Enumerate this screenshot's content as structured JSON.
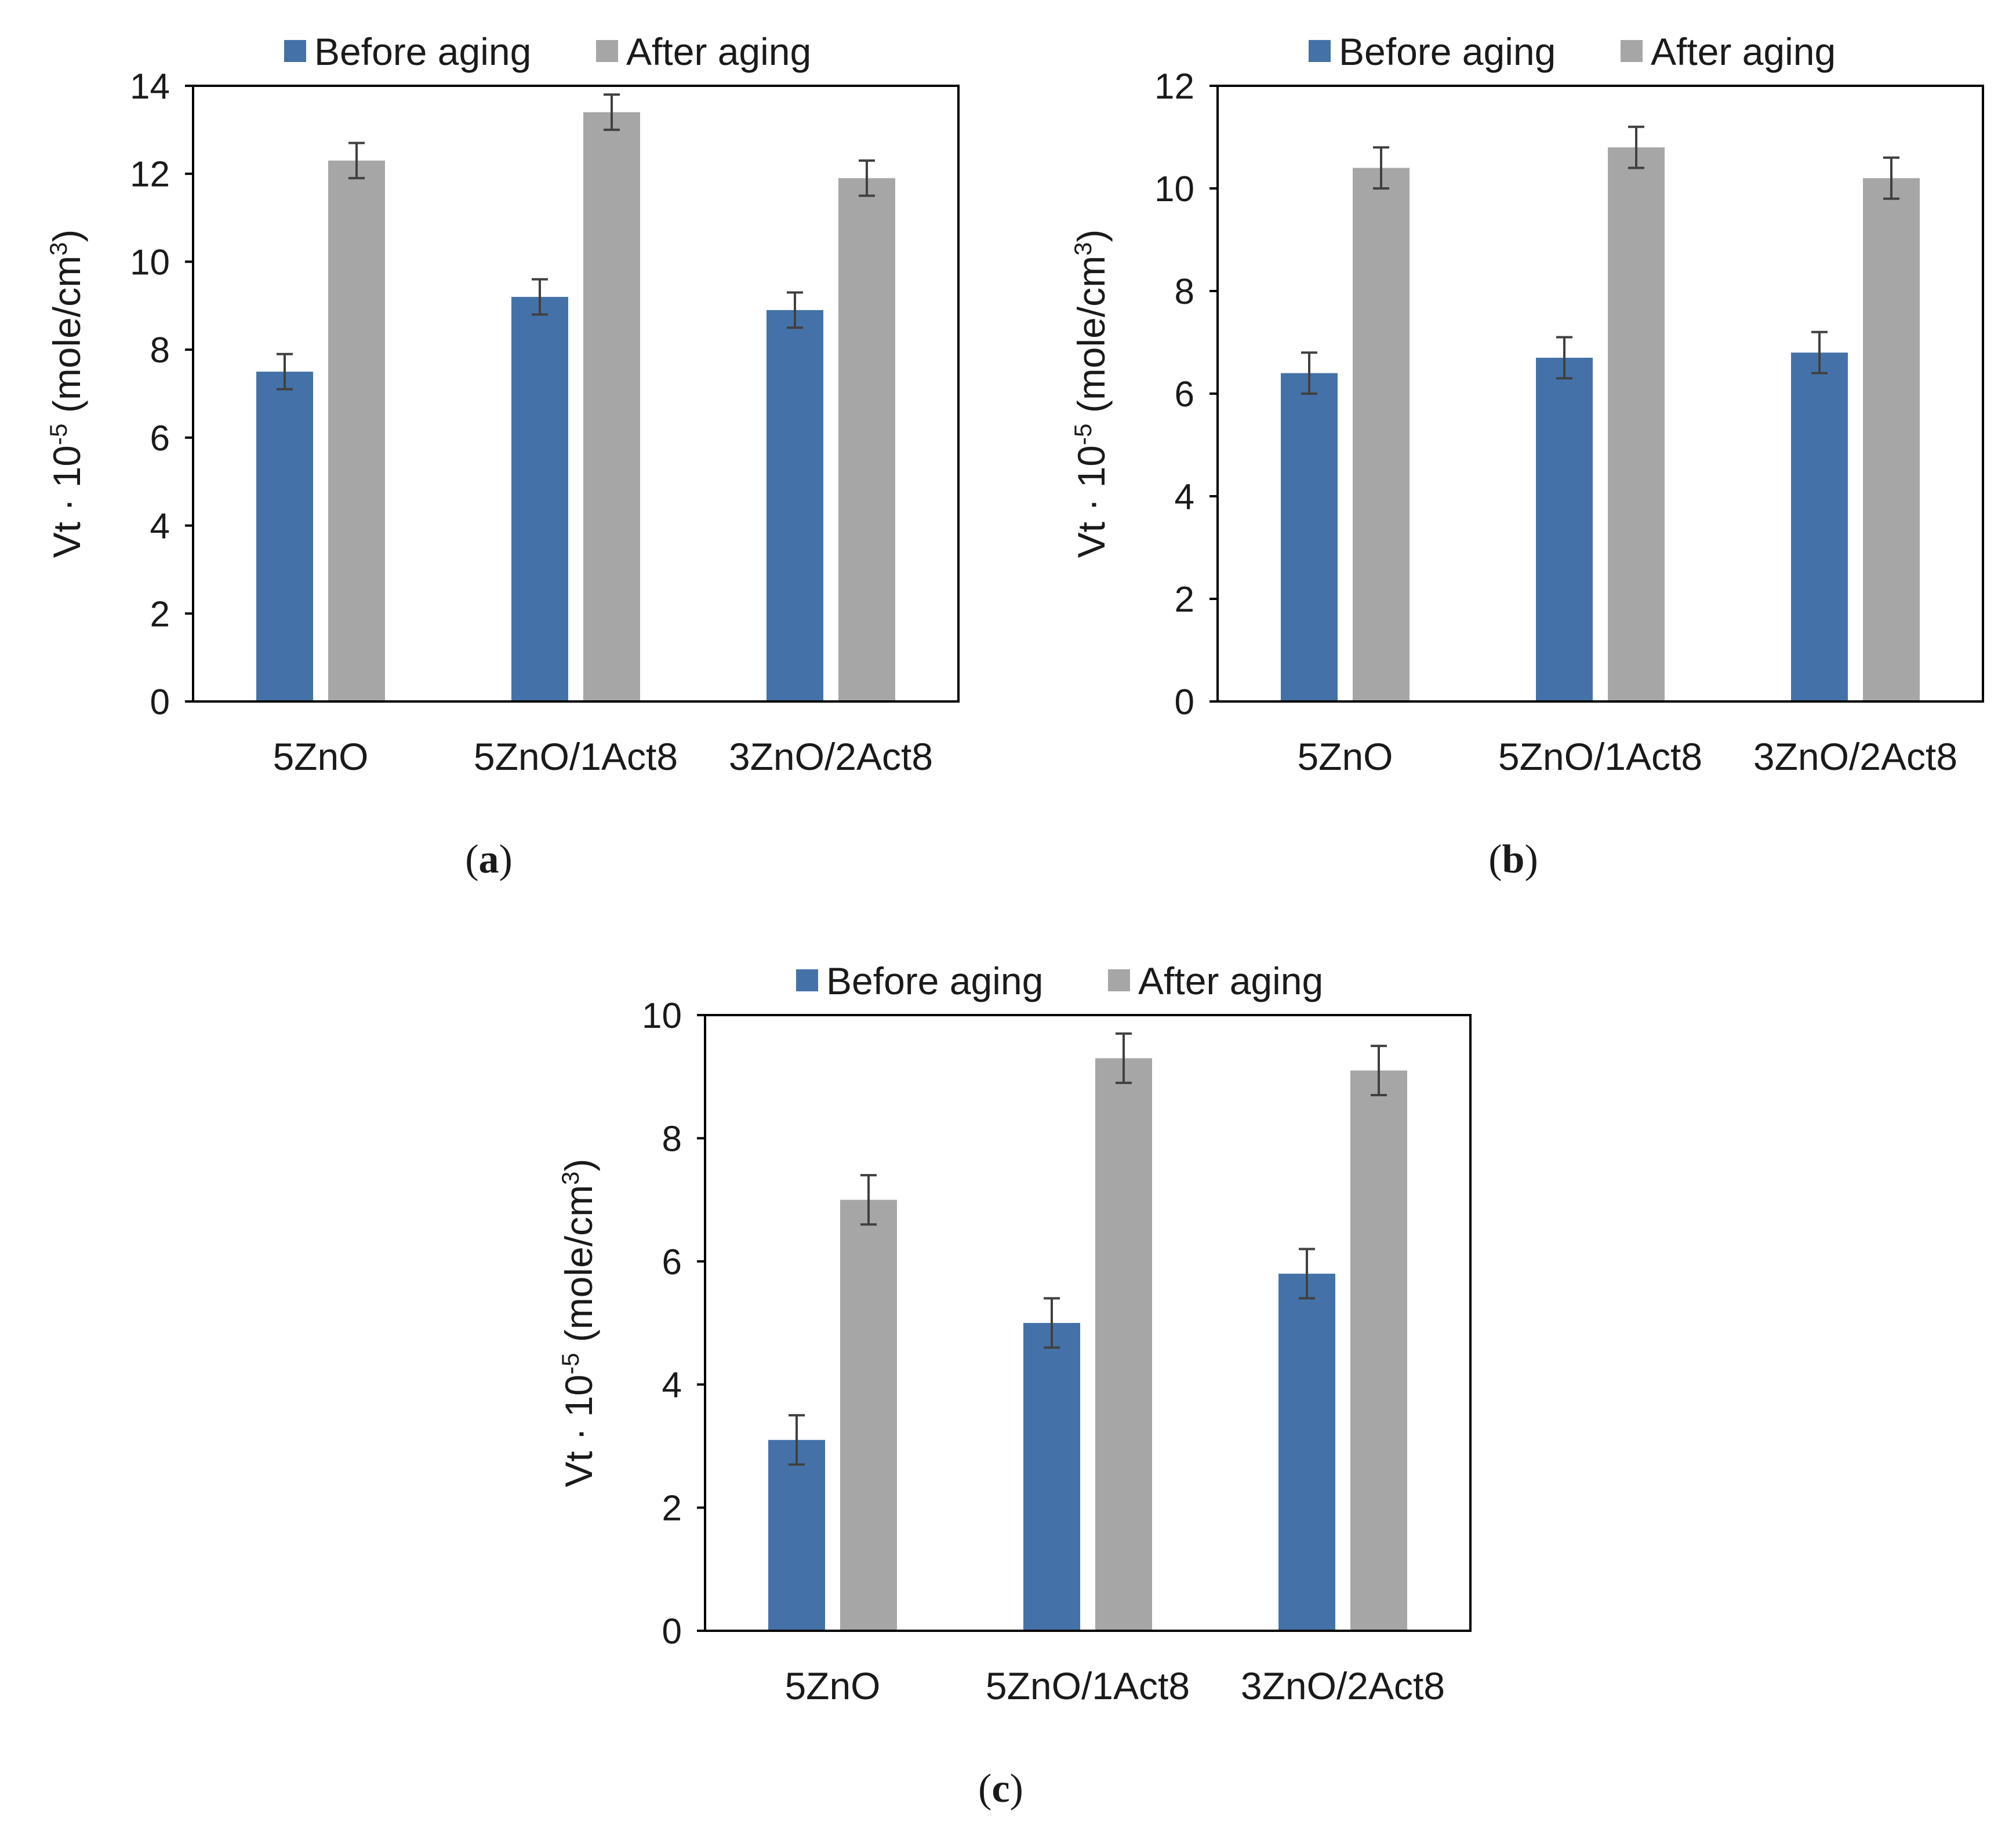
{
  "legend": {
    "before": "Before aging",
    "after": "After aging"
  },
  "colors": {
    "before": "#4472a8",
    "after": "#a6a6a6",
    "error": "#404040",
    "axis": "#000000"
  },
  "chart_data": [
    {
      "id": "a",
      "type": "bar",
      "caption_letter": "a",
      "categories": [
        "5ZnO",
        "5ZnO/1Act8",
        "3ZnO/2Act8"
      ],
      "series": [
        {
          "name": "Before aging",
          "key": "before",
          "values": [
            7.5,
            9.2,
            8.9
          ],
          "errors": [
            0.4,
            0.4,
            0.4
          ]
        },
        {
          "name": "After aging",
          "key": "after",
          "values": [
            12.3,
            13.4,
            11.9
          ],
          "errors": [
            0.4,
            0.4,
            0.4
          ]
        }
      ],
      "ylabel_main": "Vt · 10",
      "ylabel_exp": "-5",
      "ylabel_unit": " (mole/cm",
      "ylabel_unit_exp": "3",
      "ylabel_close": ")",
      "ylim": [
        0,
        14
      ],
      "yticks": [
        0,
        2,
        4,
        6,
        8,
        10,
        12,
        14
      ],
      "legend_position": "top-center"
    },
    {
      "id": "b",
      "type": "bar",
      "caption_letter": "b",
      "categories": [
        "5ZnO",
        "5ZnO/1Act8",
        "3ZnO/2Act8"
      ],
      "series": [
        {
          "name": "Before aging",
          "key": "before",
          "values": [
            6.4,
            6.7,
            6.8
          ],
          "errors": [
            0.4,
            0.4,
            0.4
          ]
        },
        {
          "name": "After aging",
          "key": "after",
          "values": [
            10.4,
            10.8,
            10.2
          ],
          "errors": [
            0.4,
            0.4,
            0.4
          ]
        }
      ],
      "ylabel_main": "Vt · 10",
      "ylabel_exp": "-5",
      "ylabel_unit": " (mole/cm",
      "ylabel_unit_exp": "3",
      "ylabel_close": ")",
      "ylim": [
        0,
        12
      ],
      "yticks": [
        0,
        2,
        4,
        6,
        8,
        10,
        12
      ],
      "legend_position": "top-center"
    },
    {
      "id": "c",
      "type": "bar",
      "caption_letter": "c",
      "categories": [
        "5ZnO",
        "5ZnO/1Act8",
        "3ZnO/2Act8"
      ],
      "series": [
        {
          "name": "Before aging",
          "key": "before",
          "values": [
            3.1,
            5.0,
            5.8
          ],
          "errors": [
            0.4,
            0.4,
            0.4
          ]
        },
        {
          "name": "After aging",
          "key": "after",
          "values": [
            7.0,
            9.3,
            9.1
          ],
          "errors": [
            0.4,
            0.4,
            0.4
          ]
        }
      ],
      "ylabel_main": "Vt · 10",
      "ylabel_exp": "-5",
      "ylabel_unit": " (mole/cm",
      "ylabel_unit_exp": "3",
      "ylabel_close": ")",
      "ylim": [
        0,
        10
      ],
      "yticks": [
        0,
        2,
        4,
        6,
        8,
        10
      ],
      "legend_position": "top-center"
    }
  ]
}
